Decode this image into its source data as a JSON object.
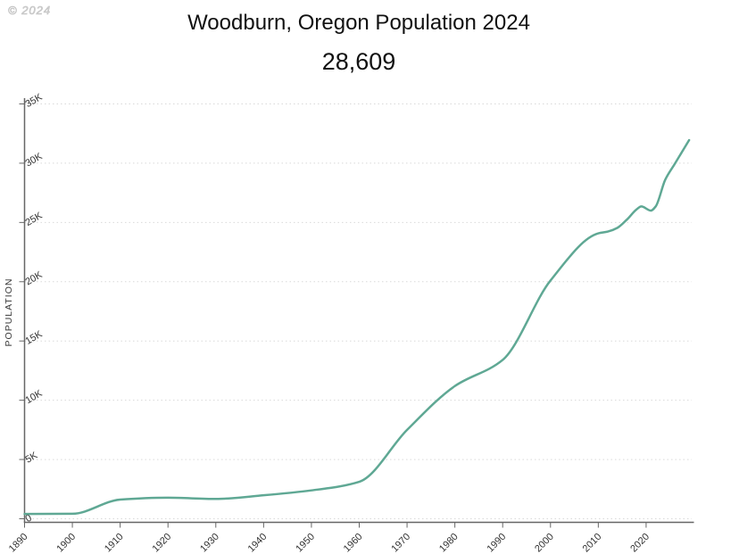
{
  "watermark": "© 2024",
  "header": {
    "title": "Woodburn, Oregon Population 2024",
    "subtitle": "28,609"
  },
  "chart_data": {
    "type": "line",
    "title": "Woodburn, Oregon Population 2024",
    "subtitle": "28,609",
    "xlabel": "",
    "ylabel": "POPULATION",
    "x_range": [
      1890,
      2030
    ],
    "ylim": [
      0,
      35000
    ],
    "grid": true,
    "legend": false,
    "y_ticks": [
      {
        "value": 0,
        "label": "0"
      },
      {
        "value": 5000,
        "label": "5K"
      },
      {
        "value": 10000,
        "label": "10K"
      },
      {
        "value": 15000,
        "label": "15K"
      },
      {
        "value": 20000,
        "label": "20K"
      },
      {
        "value": 25000,
        "label": "25K"
      },
      {
        "value": 30000,
        "label": "30K"
      },
      {
        "value": 35000,
        "label": "35K"
      }
    ],
    "x_ticks": [
      {
        "value": 1890,
        "label": "1890"
      },
      {
        "value": 1900,
        "label": "1900"
      },
      {
        "value": 1910,
        "label": "1910"
      },
      {
        "value": 1920,
        "label": "1920"
      },
      {
        "value": 1930,
        "label": "1930"
      },
      {
        "value": 1940,
        "label": "1940"
      },
      {
        "value": 1950,
        "label": "1950"
      },
      {
        "value": 1960,
        "label": "1960"
      },
      {
        "value": 1970,
        "label": "1970"
      },
      {
        "value": 1980,
        "label": "1980"
      },
      {
        "value": 1990,
        "label": "1990"
      },
      {
        "value": 2000,
        "label": "2000"
      },
      {
        "value": 2010,
        "label": "2010"
      },
      {
        "value": 2020,
        "label": "2020"
      }
    ],
    "series": [
      {
        "name": "Population",
        "color": "#5FA894",
        "points": [
          [
            1890,
            405
          ],
          [
            1900,
            420
          ],
          [
            1910,
            1616
          ],
          [
            1920,
            1777
          ],
          [
            1930,
            1675
          ],
          [
            1940,
            1982
          ],
          [
            1950,
            2395
          ],
          [
            1960,
            3120
          ],
          [
            1970,
            7495
          ],
          [
            1980,
            11196
          ],
          [
            1990,
            13404
          ],
          [
            2000,
            20100
          ],
          [
            2010,
            24080
          ],
          [
            2012,
            24230
          ],
          [
            2014,
            24550
          ],
          [
            2016,
            25250
          ],
          [
            2018,
            26100
          ],
          [
            2019,
            26350
          ],
          [
            2021,
            26000
          ],
          [
            2022,
            26350
          ],
          [
            2024,
            28609
          ],
          [
            2026,
            29950
          ],
          [
            2029,
            31950
          ]
        ]
      }
    ]
  },
  "colors": {
    "line": "#5FA894",
    "axis": "#666666",
    "grid": "#d9d9d9",
    "tick_label": "#333333",
    "axis_title": "#3a3a3a"
  }
}
